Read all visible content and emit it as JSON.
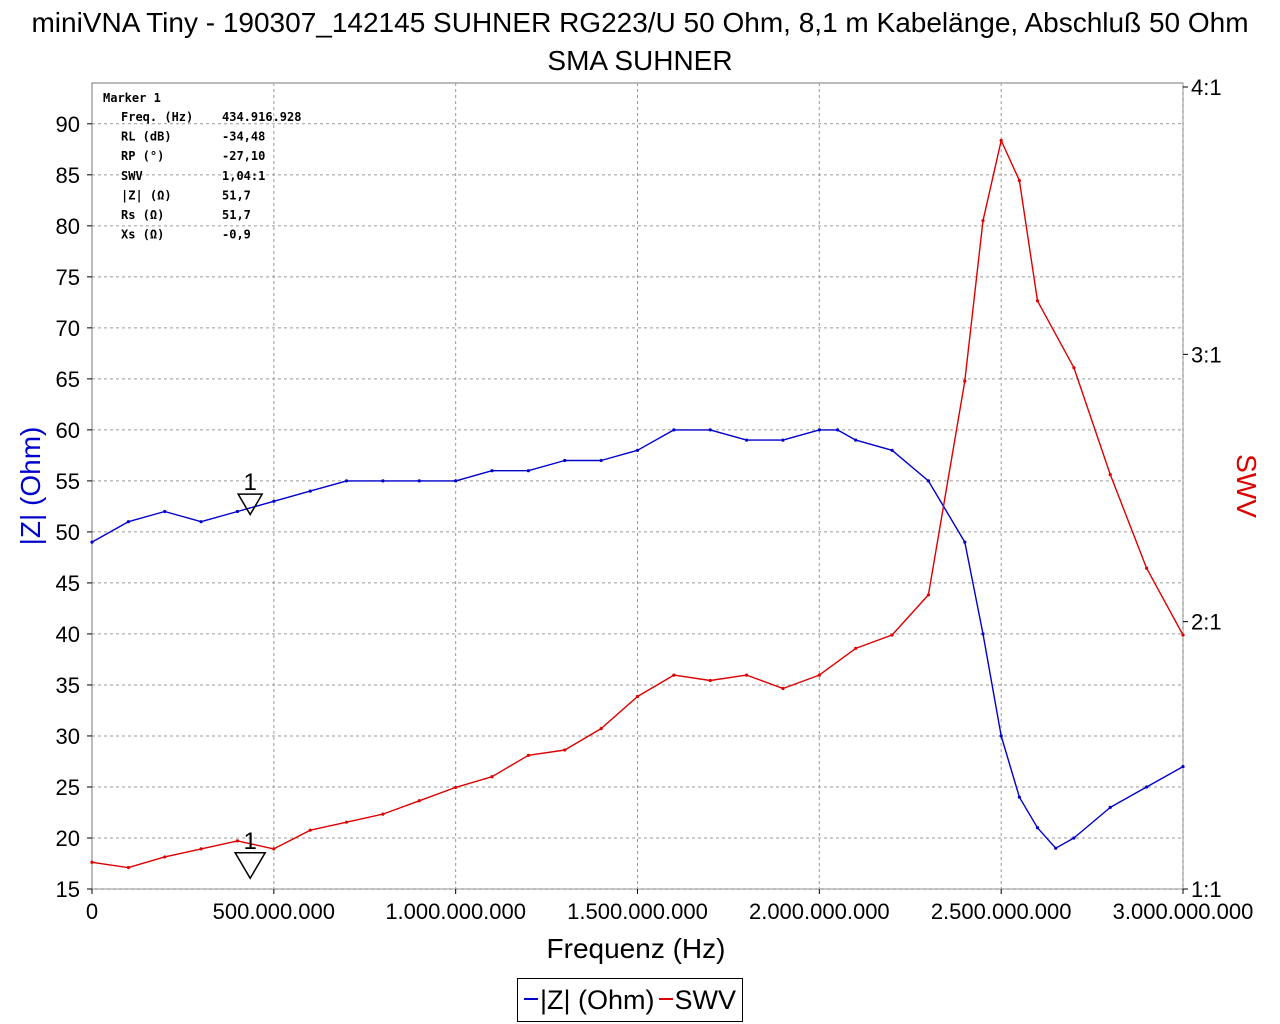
{
  "title": "miniVNA Tiny - 190307_142145 SUHNER RG223/U 50 Ohm, 8,1 m Kabelänge, Abschluß 50 Ohm SMA SUHNER",
  "marker": {
    "name": "Marker 1",
    "rows": [
      {
        "label": "Freq. (Hz)",
        "value": "434.916.928"
      },
      {
        "label": "RL (dB)",
        "value": "-34,48"
      },
      {
        "label": "RP (°)",
        "value": "-27,10"
      },
      {
        "label": "SWV",
        "value": "1,04:1"
      },
      {
        "label": "|Z| (Ω)",
        "value": "51,7"
      },
      {
        "label": "Rs (Ω)",
        "value": "51,7"
      },
      {
        "label": "Xs (Ω)",
        "value": "-0,9"
      }
    ],
    "flag_label": "1",
    "freq_hz": 434916928,
    "z_value": 51.7,
    "swr_value": 1.04
  },
  "chart_data": {
    "type": "line",
    "title": "miniVNA Tiny - 190307_142145 SUHNER RG223/U 50 Ohm, 8,1 m Kabelänge, Abschluß 50 Ohm SMA SUHNER",
    "xlabel": "Frequenz (Hz)",
    "ylabel_left": "|Z| (Ohm)",
    "ylabel_right": "SWV",
    "xlim": [
      0,
      3000000000
    ],
    "ylim_left": [
      15,
      94
    ],
    "ylim_right": [
      1,
      4
    ],
    "x_ticks": [
      {
        "value": 0,
        "label": "0"
      },
      {
        "value": 500000000,
        "label": "500.000.000"
      },
      {
        "value": 1000000000,
        "label": "1.000.000.000"
      },
      {
        "value": 1500000000,
        "label": "1.500.000.000"
      },
      {
        "value": 2000000000,
        "label": "2.000.000.000"
      },
      {
        "value": 2500000000,
        "label": "2.500.000.000"
      },
      {
        "value": 3000000000,
        "label": "3.000.000.000"
      }
    ],
    "y_ticks_left": [
      15,
      20,
      25,
      30,
      35,
      40,
      45,
      50,
      55,
      60,
      65,
      70,
      75,
      80,
      85,
      90
    ],
    "y_ticks_right": [
      {
        "value": 1,
        "label": "1:1"
      },
      {
        "value": 2,
        "label": "2:1"
      },
      {
        "value": 3,
        "label": "3:1"
      },
      {
        "value": 4,
        "label": "4:1"
      }
    ],
    "grid": true,
    "legend_position": "bottom",
    "series": [
      {
        "name": "|Z| (Ohm)",
        "color": "#0000cc",
        "axis": "left",
        "x": [
          0,
          100000000,
          200000000,
          300000000,
          400000000,
          500000000,
          600000000,
          700000000,
          800000000,
          900000000,
          1000000000,
          1100000000,
          1200000000,
          1300000000,
          1400000000,
          1500000000,
          1600000000,
          1700000000,
          1800000000,
          1900000000,
          2000000000,
          2050000000,
          2100000000,
          2200000000,
          2300000000,
          2400000000,
          2450000000,
          2500000000,
          2550000000,
          2600000000,
          2650000000,
          2700000000,
          2800000000,
          2900000000,
          3000000000
        ],
        "values": [
          49,
          51,
          52,
          51,
          52,
          53,
          54,
          55,
          55,
          55,
          55,
          56,
          56,
          57,
          57,
          58,
          60,
          60,
          59,
          59,
          60,
          60,
          59,
          58,
          55,
          49,
          40,
          30,
          24,
          21,
          19,
          20,
          23,
          25,
          27
        ]
      },
      {
        "name": "SWV",
        "color": "#dd0000",
        "axis": "right",
        "x": [
          0,
          100000000,
          200000000,
          300000000,
          400000000,
          500000000,
          600000000,
          700000000,
          800000000,
          900000000,
          1000000000,
          1100000000,
          1200000000,
          1300000000,
          1400000000,
          1500000000,
          1600000000,
          1700000000,
          1800000000,
          1900000000,
          2000000000,
          2100000000,
          2200000000,
          2300000000,
          2400000000,
          2450000000,
          2500000000,
          2550000000,
          2600000000,
          2700000000,
          2800000000,
          2900000000,
          3000000000
        ],
        "values": [
          1.1,
          1.08,
          1.12,
          1.15,
          1.18,
          1.15,
          1.22,
          1.25,
          1.28,
          1.33,
          1.38,
          1.42,
          1.5,
          1.52,
          1.6,
          1.72,
          1.8,
          1.78,
          1.8,
          1.75,
          1.8,
          1.9,
          1.95,
          2.1,
          2.9,
          3.5,
          3.8,
          3.65,
          3.2,
          2.95,
          2.55,
          2.2,
          1.95
        ]
      }
    ],
    "legend": [
      {
        "label": "|Z| (Ohm)",
        "color": "#0000cc"
      },
      {
        "label": "SWV",
        "color": "#dd0000"
      }
    ]
  }
}
